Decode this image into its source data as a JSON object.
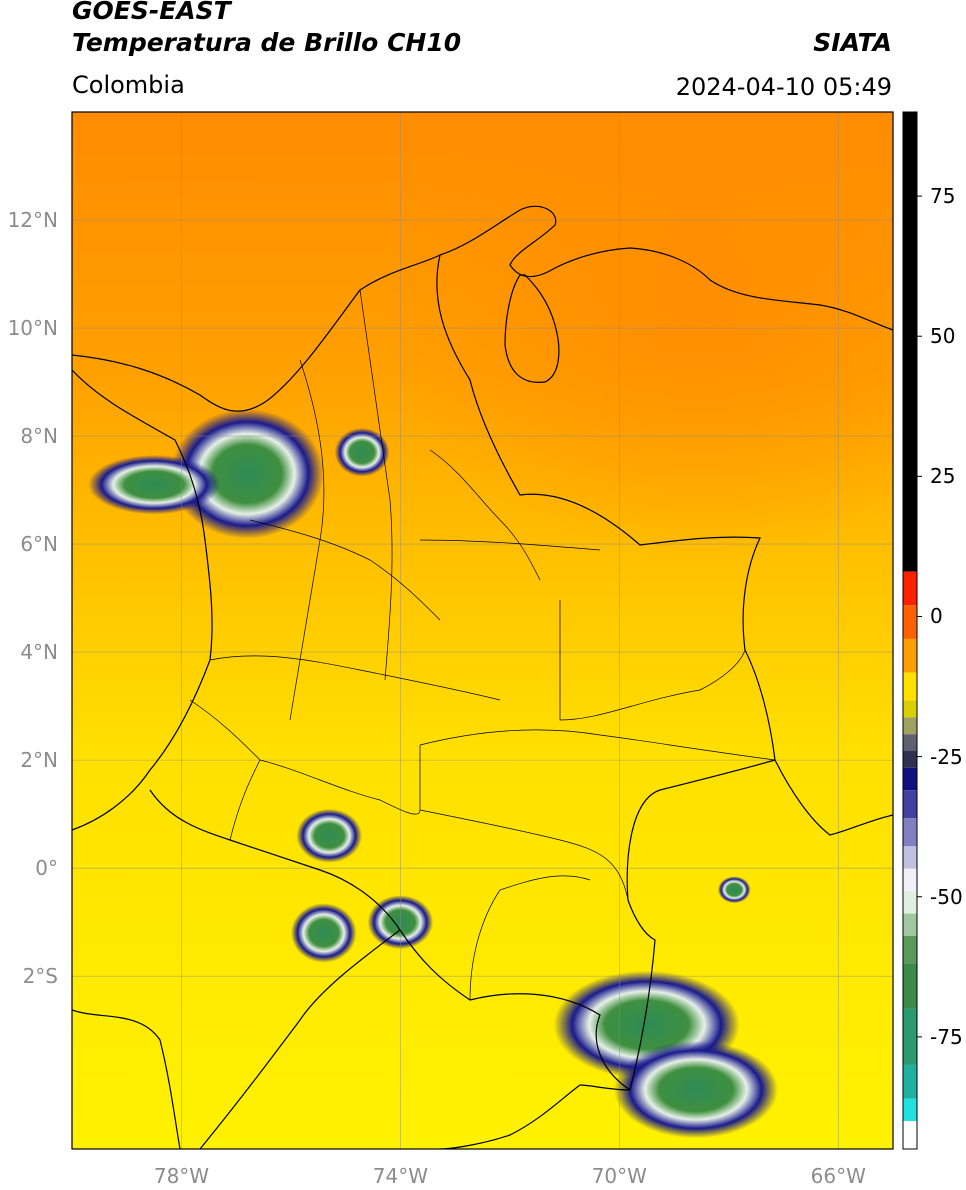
{
  "header": {
    "satellite": "GOES-EAST",
    "product": "Temperatura de Brillo CH10",
    "brand": "SIATA",
    "region": "Colombia",
    "datetime": "2024-04-10 05:49"
  },
  "map": {
    "lon_range": [
      -80,
      -65
    ],
    "lat_range": [
      -5.2,
      14.0
    ],
    "lat_ticks": [
      {
        "value": 12,
        "label": "12°N"
      },
      {
        "value": 10,
        "label": "10°N"
      },
      {
        "value": 8,
        "label": "8°N"
      },
      {
        "value": 6,
        "label": "6°N"
      },
      {
        "value": 4,
        "label": "4°N"
      },
      {
        "value": 2,
        "label": "2°N"
      },
      {
        "value": 0,
        "label": "0°"
      },
      {
        "value": -2,
        "label": "2°S"
      }
    ],
    "lon_ticks": [
      {
        "value": -78,
        "label": "78°W"
      },
      {
        "value": -74,
        "label": "74°W"
      },
      {
        "value": -70,
        "label": "70°W"
      },
      {
        "value": -66,
        "label": "66°W"
      }
    ],
    "cloud_systems": [
      {
        "lon": -76.8,
        "lat": 7.3,
        "rx": 1.4,
        "ry": 1.2
      },
      {
        "lon": -78.5,
        "lat": 7.1,
        "rx": 1.2,
        "ry": 0.55
      },
      {
        "lon": -74.7,
        "lat": 7.7,
        "rx": 0.5,
        "ry": 0.45
      },
      {
        "lon": -75.3,
        "lat": 0.6,
        "rx": 0.6,
        "ry": 0.5
      },
      {
        "lon": -75.4,
        "lat": -1.2,
        "rx": 0.6,
        "ry": 0.55
      },
      {
        "lon": -74.0,
        "lat": -1.0,
        "rx": 0.6,
        "ry": 0.5
      },
      {
        "lon": -69.5,
        "lat": -2.9,
        "rx": 1.7,
        "ry": 1.0
      },
      {
        "lon": -68.6,
        "lat": -4.1,
        "rx": 1.5,
        "ry": 0.9
      },
      {
        "lon": -67.9,
        "lat": -0.4,
        "rx": 0.3,
        "ry": 0.25
      }
    ]
  },
  "colorbar": {
    "min": -95,
    "max": 90,
    "ticks": [
      {
        "value": 75,
        "label": "75"
      },
      {
        "value": 50,
        "label": "50"
      },
      {
        "value": 25,
        "label": "25"
      },
      {
        "value": 0,
        "label": "0"
      },
      {
        "value": -25,
        "label": "-25"
      },
      {
        "value": -50,
        "label": "-50"
      },
      {
        "value": -75,
        "label": "-75"
      }
    ]
  }
}
